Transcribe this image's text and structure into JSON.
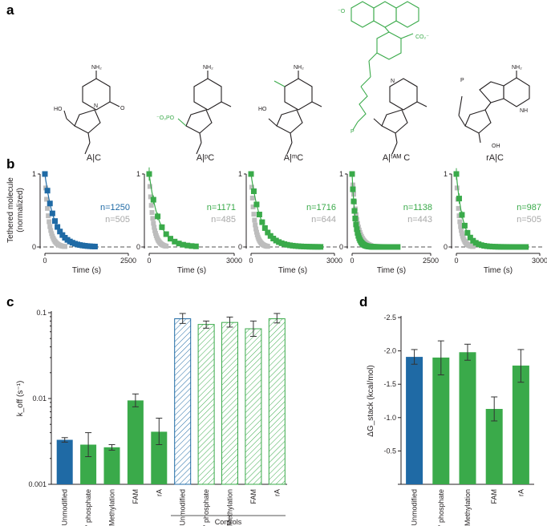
{
  "colors": {
    "blue": "#1f6aa5",
    "green": "#3aaa4a",
    "gray": "#bdbdbd",
    "ink": "#231f20"
  },
  "panels": {
    "a": "a",
    "b": "b",
    "c": "c",
    "d": "d"
  },
  "structures": [
    {
      "label": "A|C"
    },
    {
      "label": "A|ᵖC"
    },
    {
      "label": "A|ᵐC"
    },
    {
      "label": "A|ᶠᴬᴹ C"
    },
    {
      "label": "rA|C"
    }
  ],
  "atoms": {
    "nh2": "NH₂",
    "n": "N",
    "o": "O",
    "ho": "HO",
    "nh": "NH",
    "oh": "OH",
    "o3po": "⁻O₃PO",
    "p": "P",
    "ominus": "O⁻",
    "co2": "CO₂⁻",
    "ominus_top": "⁻O"
  },
  "b_ylabel_1": "Tethered molecule",
  "b_ylabel_2": "(normalized)",
  "chart_data": [
    {
      "type": "scatter",
      "panel": "b",
      "ylabel": "Tethered molecule (normalized)",
      "xlabel": "Time (s)",
      "ylim": [
        0,
        1
      ],
      "y_ticks": [
        "1",
        "0"
      ],
      "subplots": [
        {
          "xlim": [
            0,
            2500
          ],
          "x_ticks": [
            "0",
            "2500"
          ],
          "color": "blue",
          "n_main": "n=1250",
          "n_ctrl": "n=505",
          "k_main": 0.00345,
          "k_ctrl": 0.0085,
          "x_max_data": 1500,
          "step": 75,
          "err": []
        },
        {
          "xlim": [
            0,
            3000
          ],
          "x_ticks": [
            "0",
            "3000"
          ],
          "color": "green",
          "n_main": "n=1171",
          "n_ctrl": "n=485",
          "k_main": 0.0029,
          "k_ctrl": 0.0075,
          "x_max_data": 1750,
          "step": 150,
          "err": [
            0.09,
            0.06,
            0.05,
            0.04
          ]
        },
        {
          "xlim": [
            0,
            3000
          ],
          "x_ticks": [
            "0",
            "3000"
          ],
          "color": "green",
          "n_main": "n=1716",
          "n_ctrl": "n=644",
          "k_main": 0.0027,
          "k_ctrl": 0.008,
          "x_max_data": 2500,
          "step": 100,
          "err": []
        },
        {
          "xlim": [
            0,
            2500
          ],
          "x_ticks": [
            "0",
            "2500"
          ],
          "color": "green",
          "n_main": "n=1138",
          "n_ctrl": "n=443",
          "k_main": 0.0094,
          "k_ctrl": 0.0065,
          "x_max_data": 1450,
          "step": 25,
          "err": []
        },
        {
          "xlim": [
            0,
            3000
          ],
          "x_ticks": [
            "0",
            "3000"
          ],
          "color": "green",
          "n_main": "n=987",
          "n_ctrl": "n=505",
          "k_main": 0.0041,
          "k_ctrl": 0.0085,
          "x_max_data": 2500,
          "step": 100,
          "err": [
            0.08,
            0.07,
            0.05,
            0.04,
            0.04
          ]
        }
      ],
      "x_range_note": "Time (s)"
    },
    {
      "type": "bar",
      "panel": "c",
      "ylabel": "k_off (s⁻¹)",
      "yscale": "log",
      "ylim": [
        0.001,
        0.1
      ],
      "y_ticks": [
        0.001,
        0.01,
        0.1
      ],
      "y_tick_labels": [
        "0.001",
        "0.01",
        "0.1"
      ],
      "categories": [
        "Unmodified",
        "5' phosphate",
        "Methylation",
        "FAM",
        "rA",
        "Unmodified",
        "5' phosphate",
        "Methylation",
        "FAM",
        "rA"
      ],
      "values": [
        0.0033,
        0.0029,
        0.0027,
        0.0095,
        0.0041,
        0.085,
        0.073,
        0.077,
        0.065,
        0.085
      ],
      "errors": [
        [
          0.0031,
          0.0035
        ],
        [
          0.0021,
          0.004
        ],
        [
          0.0025,
          0.0029
        ],
        [
          0.008,
          0.0113
        ],
        [
          0.0029,
          0.0059
        ],
        [
          0.075,
          0.098
        ],
        [
          0.066,
          0.08
        ],
        [
          0.068,
          0.089
        ],
        [
          0.053,
          0.08
        ],
        [
          0.076,
          0.098
        ]
      ],
      "bar_colors": [
        "blue",
        "green",
        "green",
        "green",
        "green",
        "blue",
        "green",
        "green",
        "green",
        "green"
      ],
      "hatched": [
        false,
        false,
        false,
        false,
        false,
        true,
        true,
        true,
        true,
        true
      ],
      "group_label": "Controls"
    },
    {
      "type": "bar",
      "panel": "d",
      "ylabel": "ΔG_stack (kcal/mol)",
      "ylim": [
        0,
        -2.5
      ],
      "y_ticks": [
        0,
        -0.5,
        -1.0,
        -1.5,
        -2.0,
        -2.5
      ],
      "y_tick_labels": [
        "",
        "-0.5",
        "-1.0",
        "-1.5",
        "-2.0",
        "-2.5"
      ],
      "categories": [
        "Unmodified",
        "5' phosphate",
        "Methylation",
        "FAM",
        "rA"
      ],
      "values": [
        -1.91,
        -1.9,
        -1.98,
        -1.13,
        -1.78
      ],
      "errors": [
        [
          -1.8,
          -2.02
        ],
        [
          -1.64,
          -2.15
        ],
        [
          -1.86,
          -2.1
        ],
        [
          -0.95,
          -1.31
        ],
        [
          -1.53,
          -2.02
        ]
      ],
      "bar_colors": [
        "blue",
        "green",
        "green",
        "green",
        "green"
      ]
    }
  ]
}
